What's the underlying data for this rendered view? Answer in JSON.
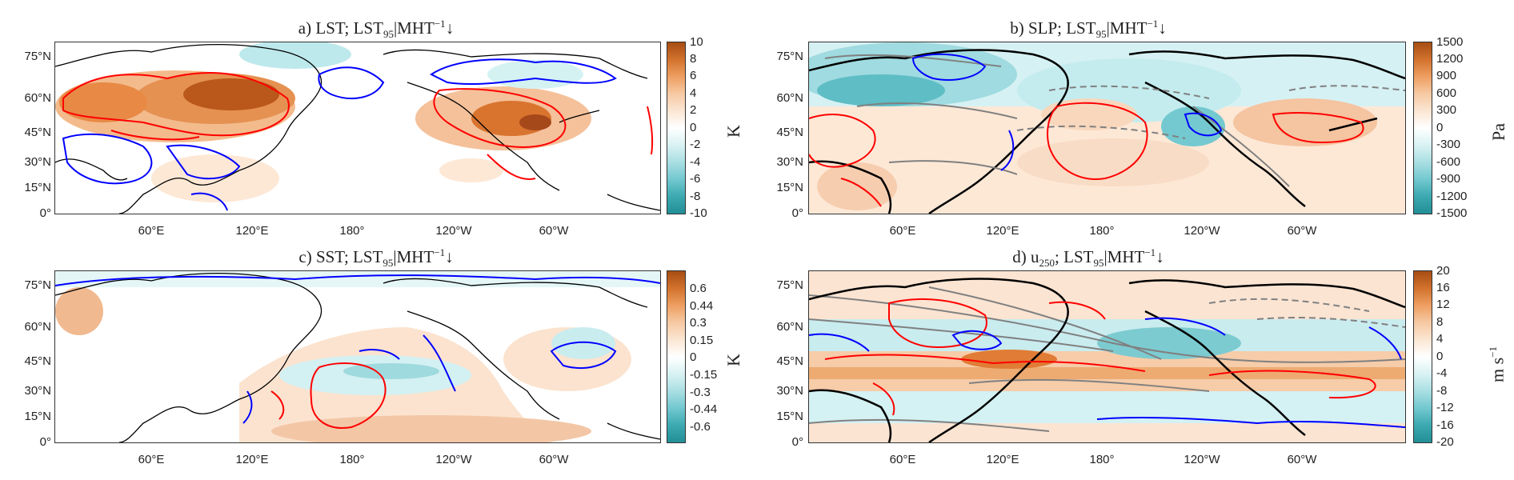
{
  "panels": [
    {
      "id": "a",
      "title": "a) LST; LST",
      "title_sub": "95",
      "title_mid": "|MHT",
      "title_sup": "−1",
      "title_tail": "↓",
      "cbar_ticks": [
        "10",
        "8",
        "6",
        "4",
        "2",
        "0",
        "-2",
        "-4",
        "-6",
        "-8",
        "-10"
      ],
      "unit": "K"
    },
    {
      "id": "b",
      "title": "b) SLP; LST",
      "title_sub": "95",
      "title_mid": "|MHT",
      "title_sup": "−1",
      "title_tail": "↓",
      "cbar_ticks": [
        "1500",
        "1200",
        "900",
        "600",
        "300",
        "0",
        "-300",
        "-600",
        "-900",
        "-1200",
        "-1500"
      ],
      "unit": "Pa"
    },
    {
      "id": "c",
      "title": "c) SST; LST",
      "title_sub": "95",
      "title_mid": "|MHT",
      "title_sup": "−1",
      "title_tail": "↓",
      "cbar_ticks": [
        "0.6",
        "0.44",
        "0.3",
        "0.15",
        "0",
        "-0.15",
        "-0.3",
        "-0.44",
        "-0.6"
      ],
      "unit": "K"
    },
    {
      "id": "d",
      "title": "d) u",
      "title_sub2": "250",
      "title2": "; LST",
      "title_sub": "95",
      "title_mid": "|MHT",
      "title_sup": "−1",
      "title_tail": "↓",
      "cbar_ticks": [
        "20",
        "16",
        "12",
        "8",
        "4",
        "0",
        "-4",
        "-8",
        "-12",
        "-16",
        "-20"
      ],
      "unit": "m s",
      "unit_sup": "−1"
    }
  ],
  "lat_labels": [
    "75°N",
    "60°N",
    "45°N",
    "30°N",
    "15°N",
    "0°"
  ],
  "lon_labels": [
    "60°E",
    "120°E",
    "180°",
    "120°W",
    "60°W"
  ],
  "colors": {
    "warm": "#c8601a",
    "cool": "#3aa9b0",
    "red_contour": "#ff0000",
    "blue_contour": "#0000ff",
    "grey_contour": "#808080",
    "coast": "#000000"
  }
}
